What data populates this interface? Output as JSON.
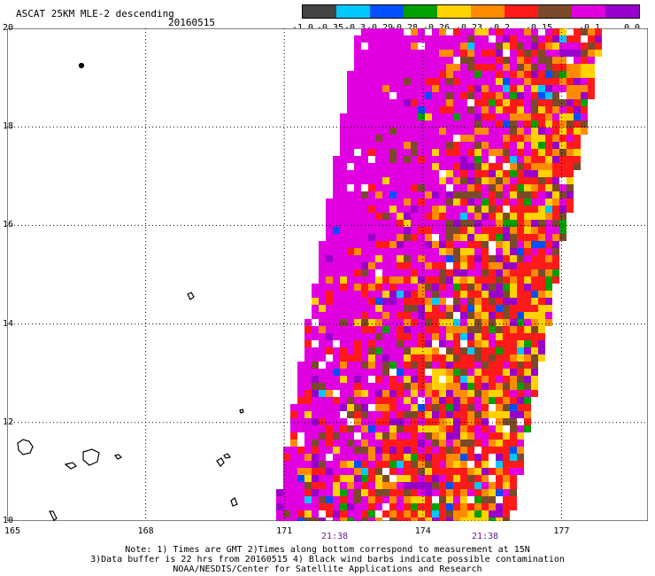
{
  "header": {
    "title": "ASCAT 25KM MLE-2 descending",
    "date": "20160515"
  },
  "colorbar": {
    "colors": [
      "#444444",
      "#00c8ff",
      "#0050ff",
      "#00a000",
      "#ffd200",
      "#ff8c00",
      "#ff1a1a",
      "#7a4a2a",
      "#e000e0",
      "#9900cc"
    ],
    "labels": [
      "-1.0",
      "-0.35",
      "-0.3",
      "-0.29",
      "-0.28",
      "-0.26",
      "-0.23",
      "-0.2",
      "-0.15",
      "-0.1",
      "0.0"
    ]
  },
  "map": {
    "lat_labels": [
      "20",
      "18",
      "16",
      "14",
      "12",
      "10"
    ],
    "lon_labels": [
      "165",
      "168",
      "171",
      "174",
      "177"
    ],
    "time_labels": [
      "21:38",
      "21:38"
    ]
  },
  "notes": {
    "line1": "Note: 1) Times are GMT 2)Times along bottom correspond to measurement at 15N",
    "line2": "3)Data buffer is 22 hrs from 20160515 4) Black wind barbs indicate possible contamination",
    "line3": "NOAA/NESDIS/Center for Satellite Applications and Research"
  }
}
